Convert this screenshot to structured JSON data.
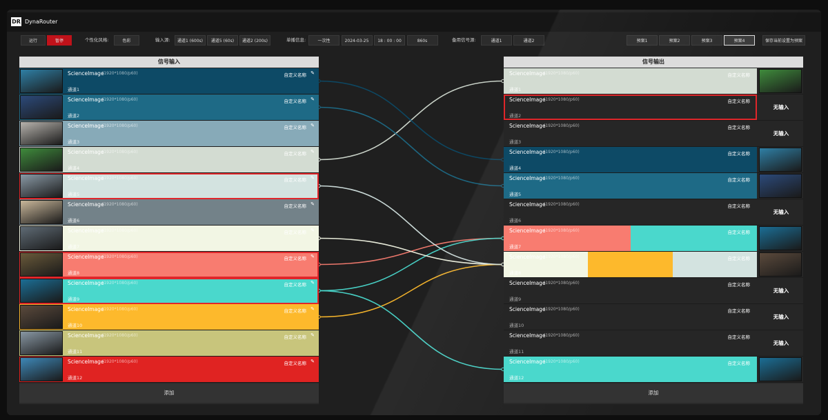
{
  "header": {
    "logo": "DR",
    "title": "DynaRouter"
  },
  "toolbar": {
    "run": "运行",
    "pause": "暂停",
    "style_label": "个性化风格:",
    "style_value": "色彩",
    "input_label": "输入源:",
    "inputs": [
      "通道1 (600s)",
      "通道5 (60s)",
      "通道2 (200s)"
    ],
    "broadcast_label": "单播信息:",
    "broadcast": [
      "一次性",
      "2024-03-25",
      "18 : 00 : 00",
      "860s"
    ],
    "backup_label": "备用信号源:",
    "backup": [
      "通道1",
      "通道2"
    ],
    "presets": [
      "预案1",
      "预案2",
      "预案3",
      "预案4"
    ],
    "active_preset": 4,
    "save": "保存当前设置为预案"
  },
  "inputs": {
    "title": "信号输入",
    "add": "添加",
    "rows": [
      {
        "name": "ScienceImage",
        "format": "(1920*1080/p60)",
        "custom": "自定义名称",
        "channel": "通道1",
        "color": "#0d4a66",
        "thumb": "#2f7fa5"
      },
      {
        "name": "ScienceImage",
        "format": "(1920*1080/p60)",
        "custom": "自定义名称",
        "channel": "通道2",
        "color": "#1e6a86",
        "thumb": "#2c4a7a"
      },
      {
        "name": "ScienceImage",
        "format": "(1920*1080/p60)",
        "custom": "自定义名称",
        "channel": "通道3",
        "color": "#87aab8",
        "thumb": "#b7b3ad"
      },
      {
        "name": "ScienceImage",
        "format": "(1920*1080/p60)",
        "custom": "自定义名称",
        "channel": "通道4",
        "color": "#d3dcd2",
        "thumb": "#3f8b3c"
      },
      {
        "name": "ScienceImage",
        "format": "(1920*1080/p60)",
        "custom": "自定义名称",
        "channel": "通道5",
        "color": "#d3e3e0",
        "thumb": "#8a9aa6",
        "selected": true
      },
      {
        "name": "ScienceImage",
        "format": "(1920*1080/p60)",
        "custom": "自定义名称",
        "channel": "通道6",
        "color": "#738289",
        "thumb": "#c9b79a"
      },
      {
        "name": "ScienceImage",
        "format": "(1920*1080/p60)",
        "custom": "自定义名称",
        "channel": "通道7",
        "color": "#f2f6e4",
        "thumb": "#5f6b75"
      },
      {
        "name": "ScienceImage",
        "format": "(1920*1080/p60)",
        "custom": "自定义名称",
        "channel": "通道8",
        "color": "#f87c70",
        "thumb": "#6a5a3a",
        "selected": true
      },
      {
        "name": "ScienceImage",
        "format": "(1920*1080/p60)",
        "custom": "自定义名称",
        "channel": "通道9",
        "color": "#4ad8cc",
        "thumb": "#1b6e95",
        "selected": true
      },
      {
        "name": "ScienceImage",
        "format": "(1920*1080/p60)",
        "custom": "自定义名称",
        "channel": "通道10",
        "color": "#fdb92c",
        "thumb": "#5b4a3c"
      },
      {
        "name": "ScienceImage",
        "format": "(1920*1080/p60)",
        "custom": "自定义名称",
        "channel": "通道11",
        "color": "#c8c57c",
        "thumb": "#8897a3"
      },
      {
        "name": "ScienceImage",
        "format": "(1920*1080/p60)",
        "custom": "自定义名称",
        "channel": "通道12",
        "color": "#e02322",
        "thumb": "#3e88b8"
      }
    ]
  },
  "outputs": {
    "title": "信号输出",
    "add": "添加",
    "rows": [
      {
        "name": "ScienceImage",
        "format": "(1920*1080/p60)",
        "custom": "自定义名称",
        "channel": "通道1",
        "sources": [
          4
        ],
        "preview": 4
      },
      {
        "name": "ScienceImage",
        "format": "(1920*1080/p60)",
        "custom": "自定义名称",
        "channel": "通道2",
        "status": "无输入",
        "selected": true
      },
      {
        "name": "ScienceImage",
        "format": "(1920*1080/p60)",
        "custom": "自定义名称",
        "channel": "通道3",
        "status": "无输入"
      },
      {
        "name": "ScienceImage",
        "format": "(1920*1080/p60)",
        "custom": "自定义名称",
        "channel": "通道4",
        "sources": [
          1
        ],
        "preview": 1
      },
      {
        "name": "ScienceImage",
        "format": "(1920*1080/p60)",
        "custom": "自定义名称",
        "channel": "通道5",
        "sources": [
          2
        ],
        "preview": 2
      },
      {
        "name": "ScienceImage",
        "format": "(1920*1080/p60)",
        "custom": "自定义名称",
        "channel": "通道6",
        "status": "无输入"
      },
      {
        "name": "ScienceImage",
        "format": "(1920*1080/p60)",
        "custom": "自定义名称",
        "channel": "通道7",
        "sources": [
          8,
          9
        ],
        "preview": 9,
        "selected": true
      },
      {
        "name": "ScienceImage",
        "format": "(1920*1080/p60)",
        "custom": "自定义名称",
        "channel": "通道8",
        "sources": [
          7,
          10,
          5
        ],
        "preview": 10
      },
      {
        "name": "ScienceImage",
        "format": "(1920*1080/p60)",
        "custom": "自定义名称",
        "channel": "通道9",
        "status": "无输入"
      },
      {
        "name": "ScienceImage",
        "format": "(1920*1080/p60)",
        "custom": "自定义名称",
        "channel": "通道10",
        "status": "无输入"
      },
      {
        "name": "ScienceImage",
        "format": "(1920*1080/p60)",
        "custom": "自定义名称",
        "channel": "通道11",
        "status": "无输入"
      },
      {
        "name": "ScienceImage",
        "format": "(1920*1080/p60)",
        "custom": "自定义名称",
        "channel": "通道12",
        "sources": [
          9
        ],
        "preview": 9
      }
    ]
  }
}
